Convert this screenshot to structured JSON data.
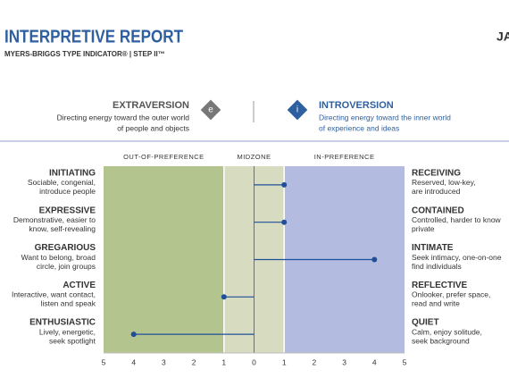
{
  "header": {
    "title": "INTERPRETIVE REPORT",
    "subtitle": "MYERS-BRIGGS TYPE INDICATOR®  |  STEP II™",
    "name": "JAC"
  },
  "poles": {
    "left": {
      "name": "EXTRAVERSION",
      "icon": "e",
      "description": [
        "Directing energy toward the outer world",
        "of people and objects"
      ]
    },
    "right": {
      "name": "INTROVERSION",
      "icon": "i",
      "description": [
        "Directing energy toward the inner world",
        "of experience and ideas"
      ]
    }
  },
  "chart_data": {
    "type": "dotplot",
    "zones": [
      {
        "label": "OUT-OF-PREFERENCE",
        "range": [
          -5,
          -1
        ],
        "color": "#b4c48f"
      },
      {
        "label": "MIDZONE",
        "range": [
          -1,
          1
        ],
        "color": "#d7dcc0"
      },
      {
        "label": "IN-PREFERENCE",
        "range": [
          1,
          5
        ],
        "color": "#b3bbe0"
      }
    ],
    "facets": [
      {
        "left": "INITIATING",
        "left_description": [
          "Sociable, congenial,",
          "introduce people"
        ],
        "right": "RECEIVING",
        "right_description": [
          "Reserved, low-key,",
          "are introduced"
        ]
      },
      {
        "left": "EXPRESSIVE",
        "left_description": [
          "Demonstrative, easier to",
          "know, self-revealing"
        ],
        "right": "CONTAINED",
        "right_description": [
          "Controlled, harder to know",
          "private"
        ]
      },
      {
        "left": "GREGARIOUS",
        "left_description": [
          "Want to belong, broad",
          "circle, join groups"
        ],
        "right": "INTIMATE",
        "right_description": [
          "Seek intimacy, one-on-one",
          "find individuals"
        ]
      },
      {
        "left": "ACTIVE",
        "left_description": [
          "Interactive, want contact,",
          "listen and speak"
        ],
        "right": "REFLECTIVE",
        "right_description": [
          "Onlooker, prefer space,",
          "read and write"
        ]
      },
      {
        "left": "ENTHUSIASTIC",
        "left_description": [
          "Lively, energetic,",
          "seek spotlight"
        ],
        "right": "QUIET",
        "right_description": [
          "Calm, enjoy solitude,",
          "seek background"
        ]
      }
    ],
    "values": [
      1,
      1,
      4,
      -1,
      -4
    ],
    "color": "#1f4e9a",
    "xlim": [
      -5,
      5
    ],
    "xticks": [
      {
        "value": -5,
        "label": "5"
      },
      {
        "value": -4,
        "label": "4"
      },
      {
        "value": -3,
        "label": "3"
      },
      {
        "value": -2,
        "label": "2"
      },
      {
        "value": -1,
        "label": "1"
      },
      0,
      1,
      2,
      3,
      4,
      5
    ]
  }
}
